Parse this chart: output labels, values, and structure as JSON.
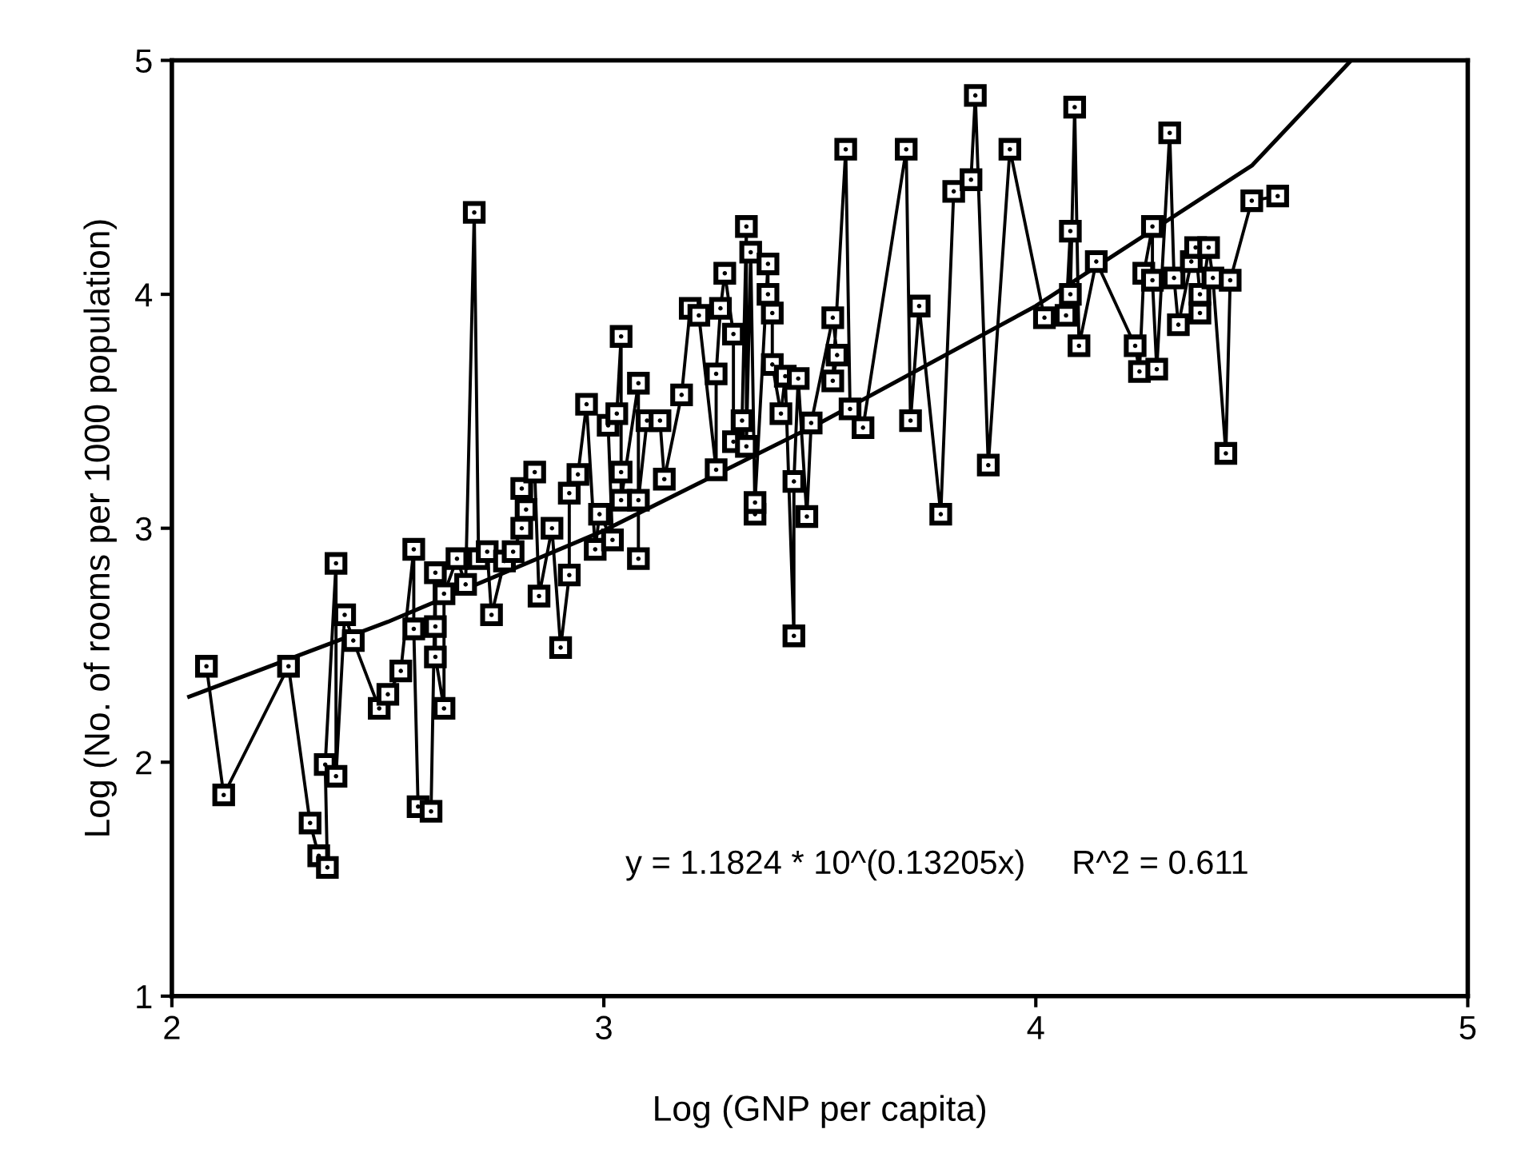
{
  "chart_data": {
    "type": "line",
    "xlabel": "Log (GNP per capita)",
    "ylabel": "Log (No. of rooms per 1000 population)",
    "xlim": [
      2,
      5
    ],
    "xticks": [
      2,
      3,
      4,
      5
    ],
    "ylim": [
      1,
      5
    ],
    "yticks": [
      1,
      2,
      3,
      4,
      5
    ],
    "grid": false,
    "annotations": [
      "y = 1.1824 * 10^(0.13205x)     R^2 = 0.611"
    ],
    "series": [
      {
        "color": "#000000",
        "marker": "square",
        "line_style": "solid",
        "x": [
          2.08,
          2.12,
          2.27,
          2.32,
          2.34,
          2.36,
          2.355,
          2.38,
          2.38,
          2.4,
          2.42,
          2.48,
          2.5,
          2.53,
          2.56,
          2.56,
          2.57,
          2.6,
          2.61,
          2.61,
          2.61,
          2.63,
          2.63,
          2.66,
          2.68,
          2.7,
          2.71,
          2.73,
          2.74,
          2.77,
          2.79,
          2.81,
          2.82,
          2.81,
          2.84,
          2.85,
          2.88,
          2.9,
          2.92,
          2.92,
          2.94,
          2.96,
          2.98,
          2.99,
          3.02,
          3.01,
          3.03,
          3.04,
          3.04,
          3.04,
          3.08,
          3.08,
          3.08,
          3.1,
          3.13,
          3.14,
          3.18,
          3.2,
          3.22,
          3.26,
          3.26,
          3.27,
          3.28,
          3.3,
          3.3,
          3.32,
          3.33,
          3.33,
          3.34,
          3.35,
          3.35,
          3.38,
          3.38,
          3.39,
          3.39,
          3.41,
          3.42,
          3.44,
          3.44,
          3.45,
          3.47,
          3.48,
          3.53,
          3.54,
          3.53,
          3.56,
          3.57,
          3.6,
          3.7,
          3.71,
          3.73,
          3.78,
          3.81,
          3.85,
          3.86,
          3.89,
          3.94,
          4.02,
          4.07,
          4.08,
          4.08,
          4.09,
          4.1,
          4.14,
          4.23,
          4.24,
          4.25,
          4.27,
          4.27,
          4.28,
          4.31,
          4.32,
          4.33,
          4.36,
          4.37,
          4.38,
          4.38,
          4.4,
          4.41,
          4.44,
          4.45,
          4.5,
          4.56
        ],
        "values": [
          2.41,
          1.86,
          2.41,
          1.74,
          1.6,
          1.55,
          1.99,
          2.85,
          1.94,
          2.63,
          2.52,
          2.23,
          2.29,
          2.39,
          2.91,
          2.57,
          1.81,
          1.79,
          2.81,
          2.58,
          2.45,
          2.23,
          2.72,
          2.87,
          2.76,
          4.35,
          2.87,
          2.9,
          2.63,
          2.86,
          2.9,
          3.0,
          3.08,
          3.17,
          3.24,
          2.71,
          3.0,
          2.49,
          2.8,
          3.15,
          3.23,
          3.53,
          2.91,
          3.06,
          2.95,
          3.44,
          3.49,
          3.82,
          3.24,
          3.12,
          3.62,
          2.87,
          3.12,
          3.46,
          3.46,
          3.21,
          3.57,
          3.94,
          3.91,
          3.25,
          3.66,
          3.94,
          4.09,
          3.83,
          3.37,
          3.46,
          4.29,
          3.35,
          4.18,
          3.06,
          3.11,
          4.13,
          4.0,
          3.92,
          3.7,
          3.49,
          3.65,
          2.54,
          3.2,
          3.64,
          3.05,
          3.45,
          3.9,
          3.74,
          3.63,
          4.62,
          3.51,
          3.43,
          4.62,
          3.46,
          3.95,
          3.06,
          4.44,
          4.49,
          4.85,
          3.27,
          4.62,
          3.9,
          3.91,
          4.27,
          4.0,
          4.8,
          3.78,
          4.14,
          3.78,
          3.67,
          4.09,
          4.29,
          4.06,
          3.68,
          4.69,
          4.07,
          3.87,
          4.14,
          4.2,
          4.0,
          3.92,
          4.2,
          4.07,
          3.32,
          4.06,
          4.4,
          4.42
        ]
      },
      {
        "color": "#000000",
        "marker": "none",
        "line_style": "solid",
        "x": [
          2.04,
          2.5,
          3.0,
          3.5,
          4.0,
          4.5,
          4.73
        ],
        "values": [
          2.28,
          2.6,
          2.99,
          3.45,
          3.95,
          4.55,
          5.0
        ]
      }
    ]
  }
}
